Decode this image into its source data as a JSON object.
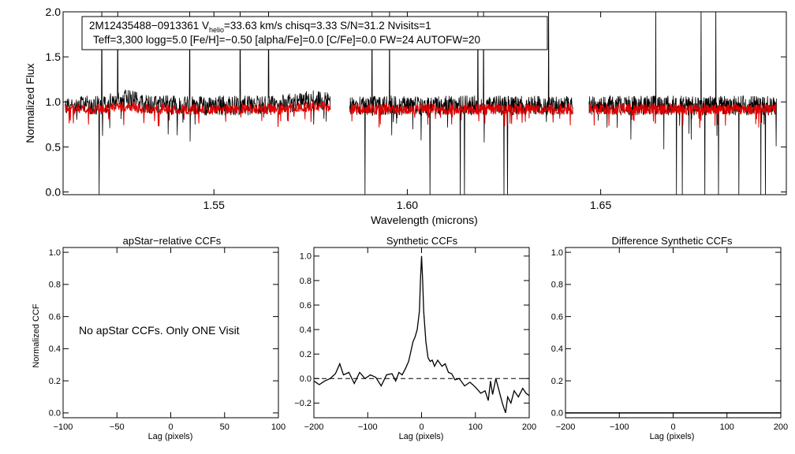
{
  "chart_data": [
    {
      "type": "line",
      "id": "spectrum",
      "info_line1": "2M12435488−0913361  V",
      "helio_sub": "helio",
      "info_line1_rest": "=33.63 km/s  chisq=3.33  S/N=31.2  Nvisits=1",
      "info_line2": "Teff=3,300 logg=5.0 [Fe/H]=−0.50 [alpha/Fe]=0.0 [C/Fe]=0.0 FW=24 AUTOFW=20",
      "xlabel": "Wavelength (microns)",
      "ylabel": "Normalized Flux",
      "xlim": [
        1.511,
        1.698
      ],
      "ylim": [
        -0.03,
        2.0
      ],
      "xticks": [
        "1.55",
        "1.60",
        "1.65"
      ],
      "xtick_values": [
        1.55,
        1.6,
        1.65
      ],
      "yticks": [
        "0.0",
        "0.5",
        "1.0",
        "1.5",
        "2.0"
      ],
      "ytick_values": [
        0.0,
        0.5,
        1.0,
        1.5,
        2.0
      ],
      "chips": [
        [
          1.5115,
          1.5801
        ],
        [
          1.5851,
          1.6428
        ],
        [
          1.647,
          1.6955
        ]
      ],
      "observed_color": "#000000",
      "model_color": "#e00000",
      "observed_level": 0.96,
      "model_level": 0.92
    },
    {
      "type": "line",
      "id": "apstar-ccf",
      "title": "apStar−relative CCFs",
      "xlabel": "Lag (pixels)",
      "ylabel": "Normalized CCF",
      "message": "No apStar CCFs.  Only ONE Visit",
      "xlim": [
        -100,
        100
      ],
      "ylim": [
        -0.03,
        1.03
      ],
      "xticks": [
        "−100",
        "−50",
        "0",
        "50",
        "100"
      ],
      "xtick_values": [
        -100,
        -50,
        0,
        50,
        100
      ],
      "yticks": [
        "0.0",
        "0.2",
        "0.4",
        "0.6",
        "0.8",
        "1.0"
      ],
      "ytick_values": [
        0.0,
        0.2,
        0.4,
        0.6,
        0.8,
        1.0
      ]
    },
    {
      "type": "line",
      "id": "synthetic-ccf",
      "title": "Synthetic CCFs",
      "xlabel": "Lag (pixels)",
      "xlim": [
        -200,
        200
      ],
      "ylim": [
        -0.32,
        1.07
      ],
      "xticks": [
        "−200",
        "−100",
        "0",
        "100",
        "200"
      ],
      "xtick_values": [
        -200,
        -100,
        0,
        100,
        200
      ],
      "yticks": [
        "−0.2",
        "0.0",
        "0.2",
        "0.4",
        "0.6",
        "0.8",
        "1.0"
      ],
      "ytick_values": [
        -0.2,
        0.0,
        0.2,
        0.4,
        0.6,
        0.8,
        1.0
      ],
      "zero_line": 0.0,
      "ccf": {
        "x": [
          -200,
          -190,
          -180,
          -170,
          -160,
          -152,
          -145,
          -135,
          -125,
          -115,
          -105,
          -95,
          -85,
          -75,
          -65,
          -55,
          -48,
          -42,
          -36,
          -30,
          -24,
          -20,
          -16,
          -12,
          -8,
          -4,
          -2,
          0,
          2,
          4,
          8,
          12,
          16,
          20,
          24,
          30,
          38,
          44,
          50,
          56,
          62,
          70,
          80,
          90,
          100,
          110,
          118,
          124,
          128,
          132,
          138,
          144,
          150,
          156,
          160,
          166,
          172,
          180,
          188,
          194,
          200
        ],
        "y": [
          -0.02,
          -0.05,
          -0.02,
          0.0,
          0.04,
          0.12,
          0.03,
          0.05,
          -0.04,
          0.05,
          0.0,
          0.03,
          0.01,
          -0.06,
          0.03,
          0.04,
          -0.02,
          0.05,
          0.03,
          0.08,
          0.14,
          0.22,
          0.3,
          0.34,
          0.4,
          0.55,
          0.8,
          1.0,
          0.8,
          0.55,
          0.3,
          0.17,
          0.14,
          0.15,
          0.1,
          0.15,
          0.1,
          0.12,
          0.05,
          0.04,
          -0.01,
          0.0,
          -0.06,
          -0.03,
          -0.07,
          -0.12,
          -0.1,
          -0.18,
          -0.02,
          -0.13,
          0.0,
          -0.1,
          -0.2,
          -0.28,
          -0.15,
          -0.2,
          -0.1,
          -0.15,
          -0.08,
          -0.12,
          -0.14
        ]
      }
    },
    {
      "type": "line",
      "id": "difference-ccf",
      "title": "Difference Synthetic CCFs",
      "xlim": [
        -200,
        200
      ],
      "ylim": [
        -0.03,
        1.03
      ],
      "xlabel": "Lag (pixels)",
      "xticks": [
        "−200",
        "−100",
        "0",
        "100",
        "200"
      ],
      "xtick_values": [
        -200,
        -100,
        0,
        100,
        200
      ],
      "yticks": [
        "0.0",
        "0.2",
        "0.4",
        "0.6",
        "0.8",
        "1.0"
      ],
      "ytick_values": [
        0.0,
        0.2,
        0.4,
        0.6,
        0.8,
        1.0
      ],
      "flat_value": 0.0
    }
  ]
}
